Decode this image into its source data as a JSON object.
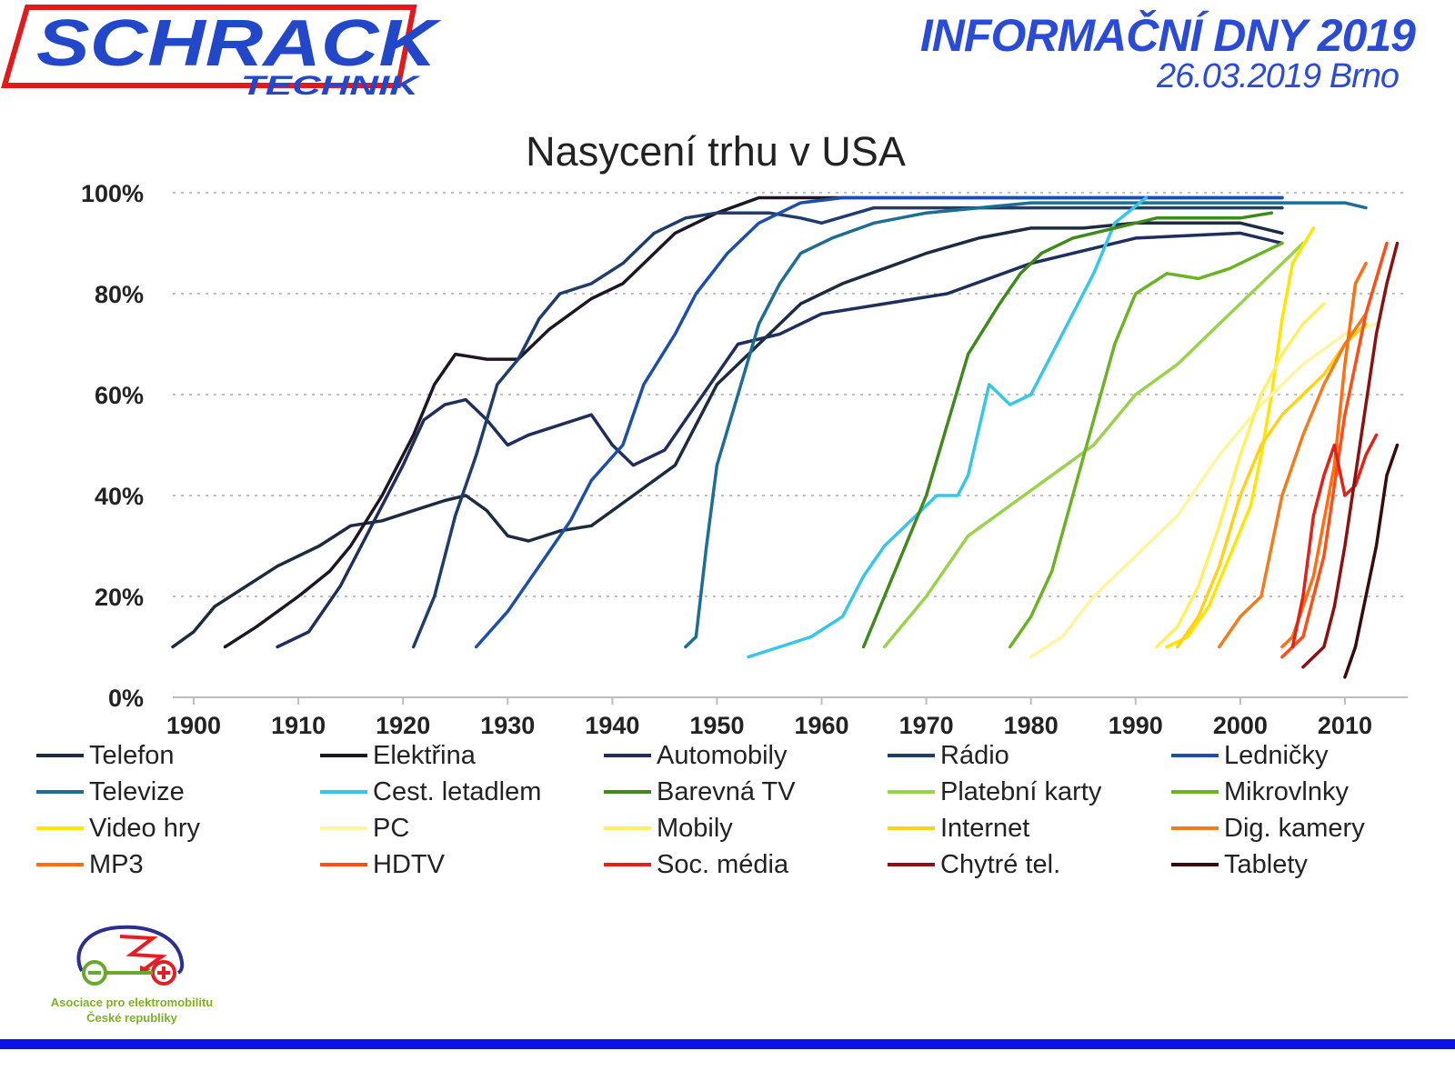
{
  "header": {
    "brand": "SCHRACK",
    "brand_sub": "TECHNIK",
    "event_title": "INFORMAČNÍ DNY 2019",
    "event_date": "26.03.2019 Brno"
  },
  "footer": {
    "association_line1": "Asociace pro elektromobilitu",
    "association_line2": "České republiky",
    "bar_color": "#0a14e6"
  },
  "chart_data": {
    "type": "line",
    "title": "Nasycení trhu v USA",
    "xlabel": "",
    "ylabel": "",
    "xlim": [
      1898,
      2016
    ],
    "ylim": [
      0,
      100
    ],
    "x_ticks": [
      1900,
      1910,
      1920,
      1930,
      1940,
      1950,
      1960,
      1970,
      1980,
      1990,
      2000,
      2010
    ],
    "y_ticks": [
      "0%",
      "20%",
      "40%",
      "60%",
      "80%",
      "100%"
    ],
    "y_tick_values": [
      0,
      20,
      40,
      60,
      80,
      100
    ],
    "grid": "horizontal dotted",
    "legend_position": "bottom",
    "series": [
      {
        "name": "Telefon",
        "color": "#1c2b40",
        "points": [
          [
            1898,
            10
          ],
          [
            1900,
            13
          ],
          [
            1902,
            18
          ],
          [
            1905,
            22
          ],
          [
            1908,
            26
          ],
          [
            1912,
            30
          ],
          [
            1915,
            34
          ],
          [
            1918,
            35
          ],
          [
            1921,
            37
          ],
          [
            1924,
            39
          ],
          [
            1926,
            40
          ],
          [
            1928,
            37
          ],
          [
            1930,
            32
          ],
          [
            1932,
            31
          ],
          [
            1935,
            33
          ],
          [
            1938,
            34
          ],
          [
            1942,
            40
          ],
          [
            1946,
            46
          ],
          [
            1950,
            62
          ],
          [
            1954,
            70
          ],
          [
            1958,
            78
          ],
          [
            1962,
            82
          ],
          [
            1966,
            85
          ],
          [
            1970,
            88
          ],
          [
            1975,
            91
          ],
          [
            1980,
            93
          ],
          [
            1985,
            93
          ],
          [
            1990,
            94
          ],
          [
            2000,
            94
          ],
          [
            2004,
            92
          ]
        ]
      },
      {
        "name": "Elektřina",
        "color": "#1e1624",
        "points": [
          [
            1903,
            10
          ],
          [
            1906,
            14
          ],
          [
            1910,
            20
          ],
          [
            1913,
            25
          ],
          [
            1915,
            30
          ],
          [
            1918,
            40
          ],
          [
            1921,
            52
          ],
          [
            1923,
            62
          ],
          [
            1925,
            68
          ],
          [
            1928,
            67
          ],
          [
            1931,
            67
          ],
          [
            1934,
            73
          ],
          [
            1938,
            79
          ],
          [
            1941,
            82
          ],
          [
            1943,
            86
          ],
          [
            1946,
            92
          ],
          [
            1950,
            96
          ],
          [
            1954,
            99
          ],
          [
            1960,
            99
          ],
          [
            2004,
            99
          ]
        ]
      },
      {
        "name": "Automobily",
        "color": "#1f2e5c",
        "points": [
          [
            1908,
            10
          ],
          [
            1911,
            13
          ],
          [
            1914,
            22
          ],
          [
            1916,
            30
          ],
          [
            1918,
            38
          ],
          [
            1920,
            46
          ],
          [
            1922,
            55
          ],
          [
            1924,
            58
          ],
          [
            1926,
            59
          ],
          [
            1928,
            55
          ],
          [
            1930,
            50
          ],
          [
            1932,
            52
          ],
          [
            1935,
            54
          ],
          [
            1938,
            56
          ],
          [
            1940,
            50
          ],
          [
            1942,
            46
          ],
          [
            1945,
            49
          ],
          [
            1948,
            58
          ],
          [
            1952,
            70
          ],
          [
            1956,
            72
          ],
          [
            1960,
            76
          ],
          [
            1966,
            78
          ],
          [
            1972,
            80
          ],
          [
            1980,
            86
          ],
          [
            1990,
            91
          ],
          [
            2000,
            92
          ],
          [
            2004,
            90
          ]
        ]
      },
      {
        "name": "Rádio",
        "color": "#1e3d6e",
        "points": [
          [
            1921,
            10
          ],
          [
            1923,
            20
          ],
          [
            1925,
            36
          ],
          [
            1927,
            48
          ],
          [
            1929,
            62
          ],
          [
            1931,
            67
          ],
          [
            1933,
            75
          ],
          [
            1935,
            80
          ],
          [
            1938,
            82
          ],
          [
            1941,
            86
          ],
          [
            1944,
            92
          ],
          [
            1947,
            95
          ],
          [
            1950,
            96
          ],
          [
            1955,
            96
          ],
          [
            1958,
            95
          ],
          [
            1960,
            94
          ],
          [
            1965,
            97
          ],
          [
            2004,
            97
          ]
        ]
      },
      {
        "name": "Ledničky",
        "color": "#1e4fa8",
        "points": [
          [
            1927,
            10
          ],
          [
            1930,
            17
          ],
          [
            1933,
            26
          ],
          [
            1936,
            35
          ],
          [
            1938,
            43
          ],
          [
            1941,
            50
          ],
          [
            1943,
            62
          ],
          [
            1946,
            72
          ],
          [
            1948,
            80
          ],
          [
            1951,
            88
          ],
          [
            1954,
            94
          ],
          [
            1958,
            98
          ],
          [
            1962,
            99
          ],
          [
            2004,
            99
          ]
        ]
      },
      {
        "name": "Televize",
        "color": "#1d6d95",
        "points": [
          [
            1947,
            10
          ],
          [
            1948,
            12
          ],
          [
            1949,
            30
          ],
          [
            1950,
            46
          ],
          [
            1952,
            60
          ],
          [
            1954,
            74
          ],
          [
            1956,
            82
          ],
          [
            1958,
            88
          ],
          [
            1961,
            91
          ],
          [
            1965,
            94
          ],
          [
            1970,
            96
          ],
          [
            1980,
            98
          ],
          [
            2000,
            98
          ],
          [
            2010,
            98
          ],
          [
            2012,
            97
          ]
        ]
      },
      {
        "name": "Cest. letadlem",
        "color": "#37c6e8",
        "points": [
          [
            1953,
            8
          ],
          [
            1956,
            10
          ],
          [
            1959,
            12
          ],
          [
            1962,
            16
          ],
          [
            1964,
            24
          ],
          [
            1966,
            30
          ],
          [
            1969,
            36
          ],
          [
            1971,
            40
          ],
          [
            1973,
            40
          ],
          [
            1974,
            44
          ],
          [
            1976,
            62
          ],
          [
            1978,
            58
          ],
          [
            1980,
            60
          ],
          [
            1983,
            72
          ],
          [
            1986,
            84
          ],
          [
            1988,
            94
          ],
          [
            1991,
            99
          ]
        ]
      },
      {
        "name": "Barevná TV",
        "color": "#3f8a1b",
        "points": [
          [
            1964,
            10
          ],
          [
            1966,
            20
          ],
          [
            1968,
            30
          ],
          [
            1970,
            40
          ],
          [
            1972,
            54
          ],
          [
            1974,
            68
          ],
          [
            1977,
            78
          ],
          [
            1979,
            84
          ],
          [
            1981,
            88
          ],
          [
            1984,
            91
          ],
          [
            1988,
            93
          ],
          [
            1992,
            95
          ],
          [
            1996,
            95
          ],
          [
            2000,
            95
          ],
          [
            2003,
            96
          ]
        ]
      },
      {
        "name": "Platební karty",
        "color": "#9ad24c",
        "points": [
          [
            1966,
            10
          ],
          [
            1970,
            20
          ],
          [
            1974,
            32
          ],
          [
            1978,
            38
          ],
          [
            1982,
            44
          ],
          [
            1986,
            50
          ],
          [
            1990,
            60
          ],
          [
            1994,
            66
          ],
          [
            1998,
            74
          ],
          [
            2002,
            82
          ],
          [
            2006,
            90
          ]
        ]
      },
      {
        "name": "Mikrovlnky",
        "color": "#6cb324",
        "points": [
          [
            1978,
            10
          ],
          [
            1980,
            16
          ],
          [
            1982,
            25
          ],
          [
            1984,
            40
          ],
          [
            1986,
            55
          ],
          [
            1988,
            70
          ],
          [
            1990,
            80
          ],
          [
            1993,
            84
          ],
          [
            1996,
            83
          ],
          [
            1999,
            85
          ],
          [
            2002,
            88
          ],
          [
            2004,
            90
          ]
        ]
      },
      {
        "name": "Video hry",
        "color": "#ffe600",
        "points": [
          [
            1993,
            10
          ],
          [
            1995,
            12
          ],
          [
            1997,
            18
          ],
          [
            1999,
            28
          ],
          [
            2001,
            38
          ],
          [
            2002,
            48
          ],
          [
            2003,
            60
          ],
          [
            2004,
            75
          ],
          [
            2005,
            86
          ],
          [
            2007,
            93
          ]
        ]
      },
      {
        "name": "PC",
        "color": "#fff4a0",
        "points": [
          [
            1980,
            8
          ],
          [
            1983,
            12
          ],
          [
            1986,
            20
          ],
          [
            1990,
            28
          ],
          [
            1994,
            36
          ],
          [
            1998,
            48
          ],
          [
            2002,
            58
          ],
          [
            2006,
            66
          ],
          [
            2010,
            72
          ],
          [
            2013,
            74
          ]
        ]
      },
      {
        "name": "Mobily",
        "color": "#fff063",
        "points": [
          [
            1992,
            10
          ],
          [
            1994,
            14
          ],
          [
            1996,
            22
          ],
          [
            1998,
            34
          ],
          [
            2000,
            48
          ],
          [
            2002,
            60
          ],
          [
            2004,
            68
          ],
          [
            2006,
            74
          ],
          [
            2008,
            78
          ]
        ]
      },
      {
        "name": "Internet",
        "color": "#ffd21a",
        "points": [
          [
            1994,
            10
          ],
          [
            1996,
            16
          ],
          [
            1998,
            26
          ],
          [
            2000,
            40
          ],
          [
            2002,
            50
          ],
          [
            2004,
            56
          ],
          [
            2006,
            60
          ],
          [
            2008,
            64
          ],
          [
            2010,
            70
          ],
          [
            2012,
            74
          ]
        ]
      },
      {
        "name": "Dig. kamery",
        "color": "#f07d1d",
        "points": [
          [
            1998,
            10
          ],
          [
            2000,
            16
          ],
          [
            2002,
            20
          ],
          [
            2004,
            40
          ],
          [
            2006,
            52
          ],
          [
            2008,
            62
          ],
          [
            2010,
            70
          ],
          [
            2012,
            76
          ]
        ]
      },
      {
        "name": "MP3",
        "color": "#ff6e10",
        "points": [
          [
            2004,
            10
          ],
          [
            2005,
            12
          ],
          [
            2007,
            24
          ],
          [
            2009,
            46
          ],
          [
            2010,
            66
          ],
          [
            2011,
            82
          ],
          [
            2012,
            86
          ]
        ]
      },
      {
        "name": "HDTV",
        "color": "#ff4d16",
        "points": [
          [
            2004,
            8
          ],
          [
            2006,
            12
          ],
          [
            2008,
            28
          ],
          [
            2010,
            56
          ],
          [
            2012,
            76
          ],
          [
            2014,
            90
          ]
        ]
      },
      {
        "name": "Soc. média",
        "color": "#e02218",
        "points": [
          [
            2005,
            10
          ],
          [
            2006,
            20
          ],
          [
            2007,
            36
          ],
          [
            2008,
            44
          ],
          [
            2009,
            50
          ],
          [
            2010,
            40
          ],
          [
            2011,
            42
          ],
          [
            2012,
            48
          ],
          [
            2013,
            52
          ]
        ]
      },
      {
        "name": "Chytré tel.",
        "color": "#8c1010",
        "points": [
          [
            2006,
            6
          ],
          [
            2008,
            10
          ],
          [
            2009,
            18
          ],
          [
            2010,
            30
          ],
          [
            2011,
            44
          ],
          [
            2012,
            58
          ],
          [
            2013,
            72
          ],
          [
            2014,
            82
          ],
          [
            2015,
            90
          ]
        ]
      },
      {
        "name": "Tablety",
        "color": "#3a0a0a",
        "points": [
          [
            2010,
            4
          ],
          [
            2011,
            10
          ],
          [
            2012,
            20
          ],
          [
            2013,
            30
          ],
          [
            2014,
            44
          ],
          [
            2015,
            50
          ]
        ]
      }
    ]
  }
}
